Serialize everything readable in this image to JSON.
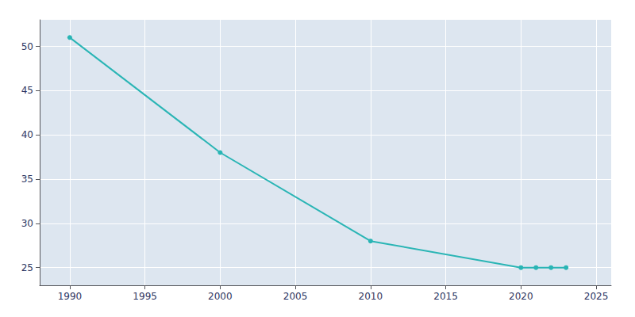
{
  "chart_data": {
    "type": "line",
    "x": [
      1990,
      2000,
      2010,
      2020,
      2021,
      2022,
      2023
    ],
    "values": [
      51,
      38,
      28,
      25,
      25,
      25,
      25
    ],
    "color": "#2ab5b5",
    "marker": "circle",
    "xlim": [
      1988,
      2026
    ],
    "ylim": [
      23,
      53
    ],
    "xticks": [
      1990,
      1995,
      2000,
      2005,
      2010,
      2015,
      2020,
      2025
    ],
    "yticks": [
      25,
      30,
      35,
      40,
      45,
      50
    ],
    "grid": true
  }
}
